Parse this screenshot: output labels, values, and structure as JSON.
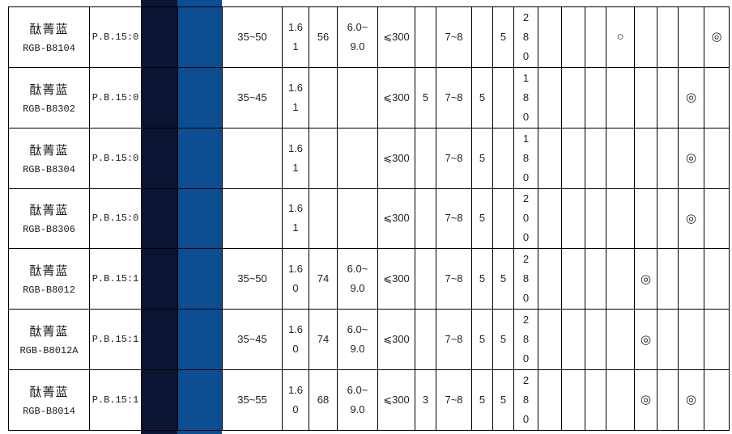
{
  "page": {
    "background": "#ffffff"
  },
  "table": {
    "border_color": "#000000",
    "swatch_colors": {
      "masstone_navy": "#0b1433",
      "tint_blue": "#0d4d92"
    },
    "mark_glyphs": {
      "circle": "○",
      "bullseye": "◎"
    },
    "rows": [
      {
        "name": "酞菁蓝",
        "code": "RGB-B8104",
        "color_index": "P.B.15:0",
        "values": [
          "35~50",
          "1.6\n1",
          "56",
          "6.0~\n9.0",
          "⩽300",
          "",
          "7~8",
          "",
          "5",
          "2\n8\n0",
          "",
          "",
          "",
          "○",
          "",
          "",
          "",
          "◎"
        ]
      },
      {
        "name": "酞菁蓝",
        "code": "RGB-B8302",
        "color_index": "P.B.15:0",
        "values": [
          "35~45",
          "1.6\n1",
          "",
          "",
          "⩽300",
          "5",
          "7~8",
          "5",
          "",
          "1\n8\n0",
          "",
          "",
          "",
          "",
          "",
          "",
          "◎",
          ""
        ]
      },
      {
        "name": "酞菁蓝",
        "code": "RGB-B8304",
        "color_index": "P.B.15:0",
        "values": [
          "",
          "1.6\n1",
          "",
          "",
          "⩽300",
          "",
          "7~8",
          "5",
          "",
          "1\n8\n0",
          "",
          "",
          "",
          "",
          "",
          "",
          "◎",
          ""
        ]
      },
      {
        "name": "酞菁蓝",
        "code": "RGB-B8306",
        "color_index": "P.B.15:0",
        "values": [
          "",
          "1.6\n1",
          "",
          "",
          "⩽300",
          "",
          "7~8",
          "5",
          "",
          "2\n0\n0",
          "",
          "",
          "",
          "",
          "",
          "",
          "◎",
          ""
        ]
      },
      {
        "name": "酞菁蓝",
        "code": "RGB-B8012",
        "color_index": "P.B.15:1",
        "values": [
          "35~50",
          "1.6\n0",
          "74",
          "6.0~\n9.0",
          "⩽300",
          "",
          "7~8",
          "5",
          "5",
          "2\n8\n0",
          "",
          "",
          "",
          "",
          "◎",
          "",
          "",
          ""
        ]
      },
      {
        "name": "酞菁蓝",
        "code": "RGB-B8012A",
        "color_index": "P.B.15:1",
        "values": [
          "35~45",
          "1.6\n0",
          "74",
          "6.0~\n9.0",
          "⩽300",
          "",
          "7~8",
          "5",
          "5",
          "2\n8\n0",
          "",
          "",
          "",
          "",
          "◎",
          "",
          "",
          ""
        ]
      },
      {
        "name": "酞菁蓝",
        "code": "RGB-B8014",
        "color_index": "P.B.15:1",
        "values": [
          "35~55",
          "1.6\n0",
          "68",
          "6.0~\n9.0",
          "⩽300",
          "3",
          "7~8",
          "5",
          "5",
          "2\n8\n0",
          "",
          "",
          "",
          "",
          "◎",
          "",
          "◎",
          ""
        ]
      }
    ]
  }
}
